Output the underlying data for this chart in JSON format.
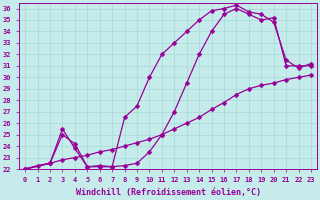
{
  "xlabel": "Windchill (Refroidissement éolien,°C)",
  "ylabel": "",
  "background_color": "#c5eceb",
  "grid_color": "#a8d8d6",
  "line_color": "#990099",
  "xlim": [
    -0.5,
    23.5
  ],
  "ylim": [
    22,
    36.5
  ],
  "xticks": [
    0,
    1,
    2,
    3,
    4,
    5,
    6,
    7,
    8,
    9,
    10,
    11,
    12,
    13,
    14,
    15,
    16,
    17,
    18,
    19,
    20,
    21,
    22,
    23
  ],
  "yticks": [
    22,
    23,
    24,
    25,
    26,
    27,
    28,
    29,
    30,
    31,
    32,
    33,
    34,
    35,
    36
  ],
  "line1_x": [
    0,
    1,
    2,
    3,
    4,
    5,
    6,
    7,
    8,
    9,
    10,
    11,
    12,
    13,
    14,
    15,
    16,
    17,
    18,
    19,
    20,
    21,
    22,
    23
  ],
  "line1_y": [
    22.0,
    22.3,
    22.5,
    22.8,
    23.0,
    23.2,
    23.5,
    23.7,
    24.0,
    24.3,
    24.6,
    25.0,
    25.5,
    26.0,
    26.5,
    27.2,
    27.8,
    28.5,
    29.0,
    29.3,
    29.5,
    29.8,
    30.0,
    30.2
  ],
  "line2_x": [
    0,
    2,
    3,
    4,
    5,
    6,
    7,
    8,
    9,
    10,
    11,
    12,
    13,
    14,
    15,
    16,
    17,
    18,
    19,
    20,
    21,
    22,
    23
  ],
  "line2_y": [
    22.0,
    22.5,
    25.0,
    24.2,
    22.2,
    22.2,
    22.2,
    22.3,
    22.5,
    23.5,
    25.0,
    27.0,
    29.5,
    32.0,
    34.0,
    35.5,
    36.0,
    35.5,
    35.0,
    35.2,
    31.0,
    31.0,
    31.0
  ],
  "line3_x": [
    0,
    2,
    3,
    4,
    5,
    6,
    7,
    8,
    9,
    10,
    11,
    12,
    13,
    14,
    15,
    16,
    17,
    18,
    19,
    20,
    21,
    22,
    23
  ],
  "line3_y": [
    22.0,
    22.5,
    25.5,
    23.8,
    22.2,
    22.3,
    22.2,
    26.5,
    27.5,
    30.0,
    32.0,
    33.0,
    34.0,
    35.0,
    35.8,
    36.0,
    36.3,
    35.7,
    35.5,
    34.8,
    31.5,
    30.8,
    31.2
  ],
  "marker": "D",
  "markersize": 2.5,
  "linewidth": 0.9,
  "tick_fontsize": 5.0,
  "xlabel_fontsize": 6.0
}
